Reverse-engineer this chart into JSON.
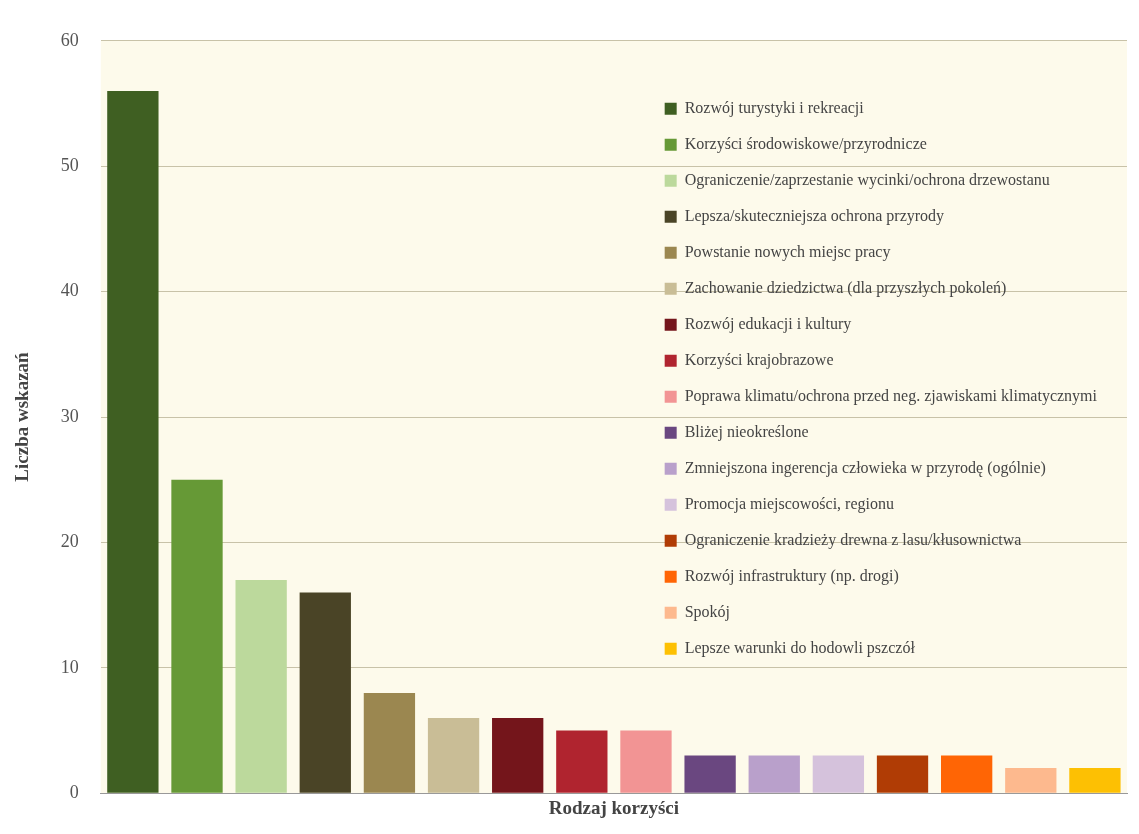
{
  "chart_data": {
    "type": "bar",
    "xlabel": "Rodzaj korzyści",
    "ylabel": "Liczba wskazań",
    "categories": [
      null,
      null,
      null,
      null,
      null,
      null,
      null,
      null,
      null,
      null,
      null,
      null,
      null,
      null,
      null,
      null
    ],
    "series": [
      {
        "name": "Rozwój turystyki i rekreacji",
        "color": "#3f5f22",
        "values": [
          56,
          null,
          null,
          null,
          null,
          null,
          null,
          null,
          null,
          null,
          null,
          null,
          null,
          null,
          null,
          null
        ]
      },
      {
        "name": "Korzyści środowiskowe/przyrodnicze",
        "color": "#669936",
        "values": [
          null,
          25,
          null,
          null,
          null,
          null,
          null,
          null,
          null,
          null,
          null,
          null,
          null,
          null,
          null,
          null
        ]
      },
      {
        "name": "Ograniczenie/zaprzestanie wycinki/ochrona drzewostanu",
        "color": "#bcd99c",
        "values": [
          null,
          null,
          17,
          null,
          null,
          null,
          null,
          null,
          null,
          null,
          null,
          null,
          null,
          null,
          null,
          null
        ]
      },
      {
        "name": "Lepsza/skuteczniejsza ochrona przyrody",
        "color": "#4a4426",
        "values": [
          null,
          null,
          null,
          16,
          null,
          null,
          null,
          null,
          null,
          null,
          null,
          null,
          null,
          null,
          null,
          null
        ]
      },
      {
        "name": "Powstanie nowych miejsc pracy",
        "color": "#9b8750",
        "values": [
          null,
          null,
          null,
          null,
          8,
          null,
          null,
          null,
          null,
          null,
          null,
          null,
          null,
          null,
          null,
          null
        ]
      },
      {
        "name": "Zachowanie dziedzictwa (dla przyszłych pokoleń)",
        "color": "#c9bd96",
        "values": [
          null,
          null,
          null,
          null,
          null,
          6,
          null,
          null,
          null,
          null,
          null,
          null,
          null,
          null,
          null,
          null
        ]
      },
      {
        "name": "Rozwój edukacji i kultury",
        "color": "#74151b",
        "values": [
          null,
          null,
          null,
          null,
          null,
          null,
          6,
          null,
          null,
          null,
          null,
          null,
          null,
          null,
          null,
          null
        ]
      },
      {
        "name": "Korzyści krajobrazowe",
        "color": "#b0242f",
        "values": [
          null,
          null,
          null,
          null,
          null,
          null,
          null,
          5,
          null,
          null,
          null,
          null,
          null,
          null,
          null,
          null
        ]
      },
      {
        "name": "Poprawa klimatu/ochrona przed neg. zjawiskami klimatycznymi",
        "color": "#f29494",
        "values": [
          null,
          null,
          null,
          null,
          null,
          null,
          null,
          null,
          5,
          null,
          null,
          null,
          null,
          null,
          null,
          null
        ]
      },
      {
        "name": "Bliżej nieokreślone",
        "color": "#6a4780",
        "values": [
          null,
          null,
          null,
          null,
          null,
          null,
          null,
          null,
          null,
          3,
          null,
          null,
          null,
          null,
          null,
          null
        ]
      },
      {
        "name": "Zmniejszona ingerencja człowieka w przyrodę (ogólnie)",
        "color": "#b9a0cb",
        "values": [
          null,
          null,
          null,
          null,
          null,
          null,
          null,
          null,
          null,
          null,
          3,
          null,
          null,
          null,
          null,
          null
        ]
      },
      {
        "name": "Promocja miejscowości, regionu",
        "color": "#d5c2dc",
        "values": [
          null,
          null,
          null,
          null,
          null,
          null,
          null,
          null,
          null,
          null,
          null,
          3,
          null,
          null,
          null,
          null
        ]
      },
      {
        "name": "Ograniczenie kradzieży drewna z lasu/kłusownictwa",
        "color": "#b03c05",
        "values": [
          null,
          null,
          null,
          null,
          null,
          null,
          null,
          null,
          null,
          null,
          null,
          null,
          3,
          null,
          null,
          null
        ]
      },
      {
        "name": "Rozwój infrastruktury (np. drogi)",
        "color": "#ff6505",
        "values": [
          null,
          null,
          null,
          null,
          null,
          null,
          null,
          null,
          null,
          null,
          null,
          null,
          null,
          3,
          null,
          null
        ]
      },
      {
        "name": "Spokój",
        "color": "#fdb98e",
        "values": [
          null,
          null,
          null,
          null,
          null,
          null,
          null,
          null,
          null,
          null,
          null,
          null,
          null,
          null,
          2,
          null
        ]
      },
      {
        "name": "Lepsze warunki do hodowli pszczół",
        "color": "#fdc003",
        "values": [
          null,
          null,
          null,
          null,
          null,
          null,
          null,
          null,
          null,
          null,
          null,
          null,
          null,
          null,
          null,
          2
        ]
      }
    ],
    "ylim": [
      0,
      60
    ],
    "yticks": [
      0,
      10,
      20,
      30,
      40,
      50,
      60
    ],
    "grid": "y",
    "legend": "top right",
    "tick_labels": "y"
  }
}
